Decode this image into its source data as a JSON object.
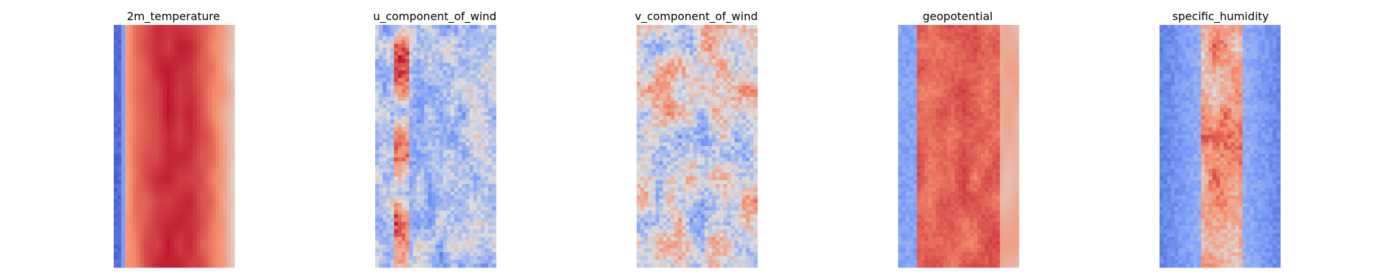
{
  "chart_data": [
    {
      "type": "heatmap",
      "title": "2m_temperature",
      "colormap": "coolwarm",
      "grid": false,
      "axes_visible": false,
      "pattern": "warm central band, cold strip at left edge"
    },
    {
      "type": "heatmap",
      "title": "u_component_of_wind",
      "colormap": "coolwarm",
      "grid": false,
      "axes_visible": false,
      "pattern": "mostly cool blues with a narrow warm streak left of center"
    },
    {
      "type": "heatmap",
      "title": "v_component_of_wind",
      "colormap": "coolwarm",
      "grid": false,
      "axes_visible": false,
      "pattern": "near-neutral with scattered warm and cool patches"
    },
    {
      "type": "heatmap",
      "title": "geopotential",
      "colormap": "coolwarm",
      "grid": false,
      "axes_visible": false,
      "pattern": "broad warm central band, cool strip at left"
    },
    {
      "type": "heatmap",
      "title": "specific_humidity",
      "colormap": "coolwarm",
      "grid": false,
      "axes_visible": false,
      "pattern": "cool background with narrow warm central column"
    }
  ]
}
